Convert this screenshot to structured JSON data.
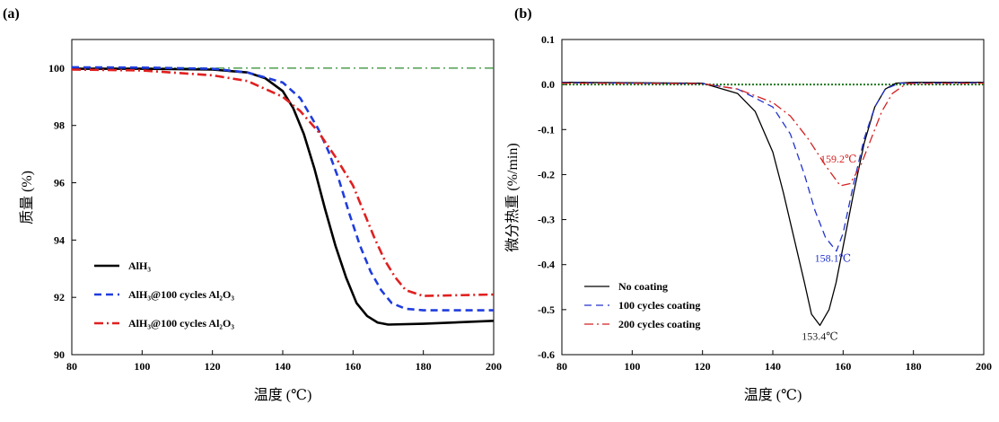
{
  "chart_data": [
    {
      "type": "line",
      "panel_label": "(a)",
      "xlabel": "温度 (℃)",
      "ylabel": "质量 (%)",
      "xlim": [
        80,
        200
      ],
      "ylim": [
        90,
        101
      ],
      "xticks": [
        80,
        100,
        120,
        140,
        160,
        180,
        200
      ],
      "xtick_labels": [
        "80",
        "100",
        "120",
        "140",
        "160",
        "180",
        "200"
      ],
      "yticks": [
        90,
        92,
        94,
        96,
        98,
        100
      ],
      "ytick_labels": [
        "90",
        "92",
        "94",
        "96",
        "98",
        "100"
      ],
      "legend_position": "lower-left",
      "reference_line": {
        "y": 100,
        "color": "#2e8b2e",
        "style": "dash-dot"
      },
      "series": [
        {
          "name": "AlH₃",
          "color": "#000000",
          "style": "solid",
          "points": [
            [
              80,
              99.98
            ],
            [
              100,
              99.98
            ],
            [
              120,
              99.95
            ],
            [
              130,
              99.85
            ],
            [
              135,
              99.65
            ],
            [
              140,
              99.2
            ],
            [
              143,
              98.6
            ],
            [
              146,
              97.7
            ],
            [
              149,
              96.5
            ],
            [
              152,
              95.1
            ],
            [
              155,
              93.8
            ],
            [
              158,
              92.7
            ],
            [
              161,
              91.8
            ],
            [
              164,
              91.35
            ],
            [
              167,
              91.12
            ],
            [
              170,
              91.05
            ],
            [
              180,
              91.08
            ],
            [
              200,
              91.18
            ]
          ]
        },
        {
          "name": "AlH₃@100 cycles Al₂O₃",
          "color": "#1f3ddd",
          "style": "dashed",
          "points": [
            [
              80,
              100.03
            ],
            [
              100,
              100.02
            ],
            [
              120,
              99.98
            ],
            [
              130,
              99.85
            ],
            [
              140,
              99.5
            ],
            [
              145,
              98.95
            ],
            [
              150,
              97.9
            ],
            [
              153,
              97.1
            ],
            [
              156,
              96.1
            ],
            [
              159,
              94.9
            ],
            [
              162,
              93.8
            ],
            [
              165,
              92.9
            ],
            [
              168,
              92.25
            ],
            [
              171,
              91.8
            ],
            [
              175,
              91.6
            ],
            [
              180,
              91.55
            ],
            [
              200,
              91.55
            ]
          ]
        },
        {
          "name": "AlH₃@100 cycles Al₂O₃",
          "color": "#e02020",
          "style": "dash-dot",
          "points": [
            [
              80,
              99.95
            ],
            [
              100,
              99.92
            ],
            [
              120,
              99.75
            ],
            [
              130,
              99.55
            ],
            [
              140,
              99.0
            ],
            [
              145,
              98.5
            ],
            [
              150,
              97.8
            ],
            [
              155,
              96.9
            ],
            [
              160,
              95.9
            ],
            [
              163,
              95.0
            ],
            [
              166,
              94.1
            ],
            [
              169,
              93.3
            ],
            [
              172,
              92.7
            ],
            [
              175,
              92.25
            ],
            [
              180,
              92.05
            ],
            [
              200,
              92.1
            ]
          ]
        }
      ]
    },
    {
      "type": "line",
      "panel_label": "(b)",
      "xlabel": "温度 (℃)",
      "ylabel": "微分热重 (%/min)",
      "xlim": [
        80,
        200
      ],
      "ylim": [
        -0.6,
        0.1
      ],
      "xticks": [
        80,
        100,
        120,
        140,
        160,
        180,
        200
      ],
      "xtick_labels": [
        "80",
        "100",
        "120",
        "140",
        "160",
        "180",
        "200"
      ],
      "yticks": [
        -0.6,
        -0.5,
        -0.4,
        -0.3,
        -0.2,
        -0.1,
        0.0,
        0.1
      ],
      "ytick_labels": [
        "-0.6",
        "-0.5",
        "-0.4",
        "-0.3",
        "-0.2",
        "-0.1",
        "0.0",
        "0.1"
      ],
      "legend_position": "lower-left",
      "reference_line": {
        "y": 0,
        "color": "#1e7a1e",
        "style": "dotted"
      },
      "series": [
        {
          "name": "No coating",
          "color": "#000000",
          "style": "solid",
          "points": [
            [
              80,
              0.005
            ],
            [
              120,
              0.003
            ],
            [
              130,
              -0.02
            ],
            [
              135,
              -0.06
            ],
            [
              140,
              -0.15
            ],
            [
              143,
              -0.24
            ],
            [
              146,
              -0.34
            ],
            [
              149,
              -0.44
            ],
            [
              151,
              -0.51
            ],
            [
              153.4,
              -0.535
            ],
            [
              156,
              -0.5
            ],
            [
              158,
              -0.44
            ],
            [
              160,
              -0.36
            ],
            [
              163,
              -0.24
            ],
            [
              166,
              -0.13
            ],
            [
              169,
              -0.05
            ],
            [
              172,
              -0.01
            ],
            [
              175,
              0.003
            ],
            [
              180,
              0.005
            ],
            [
              200,
              0.005
            ]
          ]
        },
        {
          "name": "100 cycles coating",
          "color": "#2233cc",
          "style": "dashed",
          "points": [
            [
              80,
              0.004
            ],
            [
              120,
              0.002
            ],
            [
              130,
              -0.01
            ],
            [
              140,
              -0.05
            ],
            [
              145,
              -0.11
            ],
            [
              149,
              -0.2
            ],
            [
              152,
              -0.28
            ],
            [
              155,
              -0.34
            ],
            [
              158.1,
              -0.37
            ],
            [
              160,
              -0.33
            ],
            [
              163,
              -0.22
            ],
            [
              166,
              -0.12
            ],
            [
              169,
              -0.05
            ],
            [
              172,
              -0.01
            ],
            [
              176,
              0.003
            ],
            [
              200,
              0.004
            ]
          ]
        },
        {
          "name": "200 cycles coating",
          "color": "#d42020",
          "style": "dash-dot",
          "points": [
            [
              80,
              0.003
            ],
            [
              120,
              0.002
            ],
            [
              130,
              -0.01
            ],
            [
              140,
              -0.04
            ],
            [
              145,
              -0.07
            ],
            [
              150,
              -0.12
            ],
            [
              155,
              -0.18
            ],
            [
              159.2,
              -0.225
            ],
            [
              162,
              -0.22
            ],
            [
              165,
              -0.18
            ],
            [
              168,
              -0.12
            ],
            [
              171,
              -0.06
            ],
            [
              174,
              -0.02
            ],
            [
              178,
              0.002
            ],
            [
              200,
              0.003
            ]
          ]
        }
      ],
      "annotations": [
        {
          "text": "153.4℃",
          "x": 153.4,
          "y": -0.535,
          "color": "#222222"
        },
        {
          "text": "158.1℃",
          "x": 158.1,
          "y": -0.37,
          "color": "#2233cc"
        },
        {
          "text": "159.2℃",
          "x": 159.2,
          "y": -0.225,
          "color": "#d42020"
        }
      ]
    }
  ]
}
